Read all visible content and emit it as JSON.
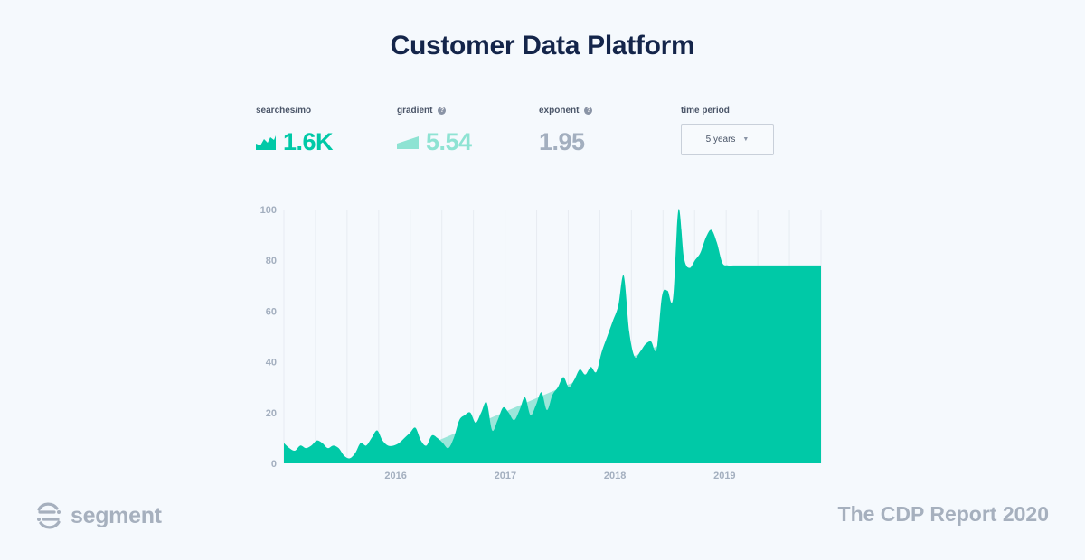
{
  "title": "Customer Data Platform",
  "metrics": {
    "searches": {
      "label": "searches/mo",
      "value": "1.6K",
      "color": "#00c9a7"
    },
    "gradient": {
      "label": "gradient",
      "value": "5.54",
      "color": "#8ee3d3"
    },
    "exponent": {
      "label": "exponent",
      "value": "1.95",
      "color": "#a3afbf"
    },
    "period": {
      "label": "time period",
      "selected": "5 years"
    }
  },
  "chart_data": {
    "type": "area",
    "x_tick_labels": [
      "2016",
      "2017",
      "2018",
      "2019"
    ],
    "y_ticks": [
      0,
      20,
      40,
      60,
      80,
      100
    ],
    "ylim": [
      0,
      100
    ],
    "x_range": [
      2015.0,
      2019.9
    ],
    "grid": "vertical",
    "series": [
      {
        "x": [
          2015.0,
          2015.05,
          2015.1,
          2015.15,
          2015.2,
          2015.25,
          2015.3,
          2015.35,
          2015.4,
          2015.45,
          2015.5,
          2015.55,
          2015.6,
          2015.65,
          2015.7,
          2015.75,
          2015.8,
          2015.85,
          2015.9,
          2015.95,
          2016.0,
          2016.05,
          2016.1,
          2016.15,
          2016.2,
          2016.25,
          2016.3,
          2016.35,
          2016.4,
          2016.45,
          2016.5,
          2016.55,
          2016.6,
          2016.65,
          2016.7,
          2016.75,
          2016.8,
          2016.85,
          2016.9,
          2016.95,
          2017.0,
          2017.05,
          2017.1,
          2017.15,
          2017.2,
          2017.25,
          2017.3,
          2017.35,
          2017.4,
          2017.45,
          2017.5,
          2017.55,
          2017.6,
          2017.65,
          2017.7,
          2017.75,
          2017.8,
          2017.85,
          2017.9,
          2017.95,
          2018.0,
          2018.05,
          2018.1,
          2018.15,
          2018.2,
          2018.25,
          2018.3,
          2018.35,
          2018.4,
          2018.45,
          2018.5,
          2018.55,
          2018.6,
          2018.65,
          2018.7,
          2018.75,
          2018.8,
          2018.85,
          2018.9,
          2018.95,
          2019.0,
          2019.05,
          2019.1,
          2019.15,
          2019.2,
          2019.25,
          2019.3,
          2019.35,
          2019.4,
          2019.45,
          2019.5,
          2019.55,
          2019.6,
          2019.65,
          2019.7,
          2019.75,
          2019.8,
          2019.85,
          2019.9
        ],
        "values": [
          8,
          6,
          5,
          7,
          6,
          7,
          9,
          8,
          6,
          7,
          6,
          3,
          2,
          4,
          8,
          7,
          10,
          13,
          9,
          7,
          7,
          8,
          10,
          12,
          14,
          9,
          7,
          11,
          10,
          8,
          6,
          10,
          17,
          19,
          20,
          16,
          20,
          24,
          13,
          17,
          22,
          20,
          17,
          21,
          26,
          19,
          23,
          28,
          21,
          27,
          30,
          34,
          30,
          33,
          37,
          35,
          38,
          36,
          44,
          50,
          56,
          62,
          74,
          52,
          42,
          44,
          47,
          48,
          45,
          66,
          68,
          65,
          100,
          81,
          77,
          80,
          83,
          89,
          92,
          87,
          79,
          78,
          78,
          78,
          78,
          78,
          78,
          78,
          78,
          78,
          78,
          78,
          78,
          78,
          78,
          78,
          78,
          78,
          78
        ],
        "color": "#00c9a7"
      },
      {
        "type": "trend",
        "x": [
          2016.3,
          2019.15
        ],
        "values": [
          7,
          60
        ],
        "color": "#9be6da"
      }
    ]
  },
  "footer": {
    "logo_text": "segment",
    "report": "The CDP Report 2020"
  }
}
